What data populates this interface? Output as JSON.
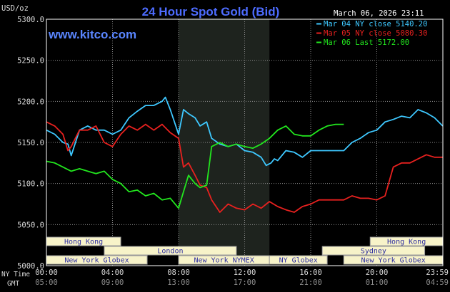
{
  "chart_data": {
    "type": "line",
    "title": "24 Hour Spot Gold (Bid)",
    "watermark": "www.kitco.com",
    "date_label": "March 06, 2026 23:11",
    "y_unit": "USD/oz",
    "ylim": [
      5000,
      5300
    ],
    "y_ticks": [
      "5300.0",
      "5250.0",
      "5200.0",
      "5150.0",
      "5100.0",
      "5050.0",
      "5000.0"
    ],
    "xlim_hours": [
      0,
      24
    ],
    "x_ticks_ny": [
      "00:00",
      "04:00",
      "08:00",
      "12:00",
      "16:00",
      "20:00",
      "23:59"
    ],
    "x_ticks_gmt": [
      "05:00",
      "09:00",
      "13:00",
      "17:00",
      "21:00",
      "01:00",
      "04:59"
    ],
    "x_axis_row_labels": [
      "NY Time",
      "GMT"
    ],
    "colors": {
      "background": "#000000",
      "grid": "#8a8a8a",
      "plot_border": "#ffffff",
      "title": "#4d6cff",
      "watermark": "#5a86ff",
      "text": "#ffffff",
      "axis_text": "#d9d9d9",
      "gmt_text": "#8c8c8c",
      "shade": "#1e231e",
      "market_bar": "#f7f3c9",
      "market_text": "#2d2da0",
      "market_edge": "#999999"
    },
    "shaded_hours": [
      8.0,
      13.5
    ],
    "markets": {
      "rows": [
        [
          {
            "label": "Hong Kong",
            "start": 0.0,
            "end": 4.5
          },
          {
            "label": "Hong Kong",
            "start": 19.6,
            "end": 24.0
          }
        ],
        [
          {
            "label": "London",
            "start": 3.5,
            "end": 11.5
          },
          {
            "label": "Sydney",
            "start": 16.7,
            "end": 22.9
          }
        ],
        [
          {
            "label": "New York Globex",
            "start": 0.0,
            "end": 6.1
          },
          {
            "label": "New York NYMEX",
            "start": 8.0,
            "end": 13.5
          },
          {
            "label": "NY Globex",
            "start": 13.5,
            "end": 17.0
          },
          {
            "label": "New York Globex",
            "start": 18.0,
            "end": 24.0
          }
        ]
      ]
    },
    "series": [
      {
        "name": "Mar 04 NY close 5140.20",
        "color": "#3ec8ff",
        "x": [
          0,
          0.5,
          1,
          1.3,
          1.5,
          2,
          2.5,
          3,
          3.5,
          4,
          4.5,
          5,
          5.5,
          6,
          6.5,
          7,
          7.2,
          7.5,
          8,
          8.3,
          8.6,
          9,
          9.3,
          9.7,
          10,
          10.5,
          11,
          11.5,
          12,
          12.5,
          13,
          13.3,
          13.6,
          13.8,
          14,
          14.5,
          15,
          15.5,
          16,
          16.5,
          17,
          17.5,
          18,
          18.5,
          19,
          19.5,
          20,
          20.5,
          21,
          21.5,
          22,
          22.5,
          23,
          23.5,
          23.99
        ],
        "values": [
          5165,
          5160,
          5150,
          5148,
          5134,
          5165,
          5170,
          5165,
          5165,
          5160,
          5165,
          5180,
          5188,
          5195,
          5195,
          5200,
          5205,
          5190,
          5160,
          5190,
          5185,
          5180,
          5170,
          5175,
          5155,
          5148,
          5145,
          5148,
          5140,
          5138,
          5132,
          5122,
          5125,
          5130,
          5128,
          5140,
          5138,
          5132,
          5140,
          5140,
          5140,
          5140,
          5140,
          5150,
          5155,
          5162,
          5165,
          5175,
          5178,
          5182,
          5180,
          5190,
          5186,
          5180,
          5170
        ]
      },
      {
        "name": "Mar 05 NY close 5080.30",
        "color": "#e8211f",
        "x": [
          0,
          0.5,
          1,
          1.3,
          1.5,
          2,
          2.5,
          3,
          3.5,
          4,
          4.5,
          5,
          5.5,
          6,
          6.5,
          7,
          7.5,
          8,
          8.3,
          8.6,
          9,
          9.3,
          9.7,
          10,
          10.5,
          11,
          11.5,
          12,
          12.5,
          13,
          13.5,
          14,
          14.5,
          15,
          15.5,
          16,
          16.5,
          17,
          17.5,
          18,
          18.5,
          19,
          19.5,
          20,
          20.5,
          21,
          21.5,
          22,
          22.5,
          23,
          23.5,
          23.99
        ],
        "values": [
          5175,
          5170,
          5160,
          5140,
          5145,
          5165,
          5165,
          5170,
          5150,
          5145,
          5160,
          5170,
          5165,
          5172,
          5165,
          5172,
          5162,
          5155,
          5120,
          5125,
          5110,
          5098,
          5095,
          5080,
          5065,
          5075,
          5070,
          5068,
          5075,
          5070,
          5078,
          5072,
          5068,
          5065,
          5072,
          5075,
          5080,
          5080,
          5080,
          5080,
          5085,
          5082,
          5082,
          5080,
          5085,
          5120,
          5125,
          5125,
          5130,
          5135,
          5132,
          5132
        ]
      },
      {
        "name": "Mar 06 Last 5172.00",
        "color": "#22e61e",
        "x": [
          0,
          0.5,
          1,
          1.5,
          2,
          2.5,
          3,
          3.5,
          4,
          4.5,
          5,
          5.5,
          6,
          6.5,
          7,
          7.5,
          8,
          8.3,
          8.6,
          9,
          9.3,
          9.7,
          10,
          10.5,
          11,
          11.5,
          12,
          12.5,
          13,
          13.5,
          14,
          14.5,
          15,
          15.5,
          16,
          16.5,
          17,
          17.5,
          18.0
        ],
        "values": [
          5127,
          5125,
          5120,
          5115,
          5118,
          5115,
          5112,
          5115,
          5105,
          5100,
          5090,
          5092,
          5085,
          5088,
          5080,
          5082,
          5070,
          5090,
          5110,
          5100,
          5095,
          5098,
          5145,
          5150,
          5145,
          5148,
          5145,
          5143,
          5148,
          5155,
          5165,
          5170,
          5160,
          5158,
          5158,
          5165,
          5170,
          5172,
          5172
        ]
      }
    ]
  }
}
